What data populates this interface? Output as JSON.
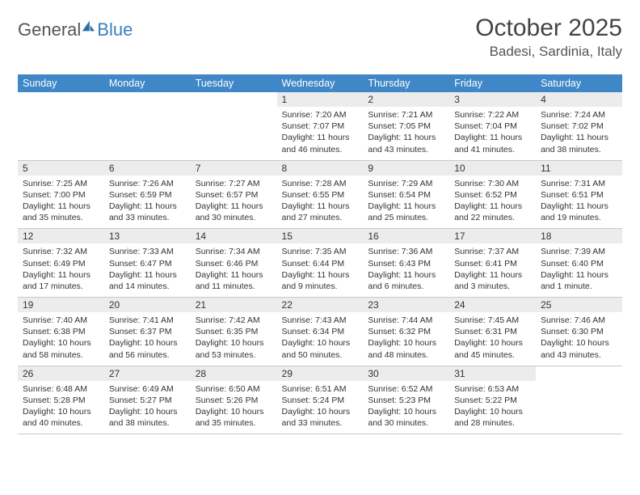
{
  "brand": {
    "part1": "General",
    "part2": "Blue"
  },
  "title": "October 2025",
  "location": "Badesi, Sardinia, Italy",
  "colors": {
    "header_bg": "#3f87c6",
    "header_fg": "#ffffff",
    "daynum_bg": "#ececec",
    "border": "#c8c8c8",
    "logo_gray": "#555555",
    "logo_blue": "#3a7fbf",
    "text": "#333333",
    "page_bg": "#ffffff"
  },
  "fonts": {
    "title_size_pt": 22,
    "location_size_pt": 13,
    "weekday_size_pt": 9,
    "daynum_size_pt": 9,
    "body_size_pt": 8
  },
  "weekdays": [
    "Sunday",
    "Monday",
    "Tuesday",
    "Wednesday",
    "Thursday",
    "Friday",
    "Saturday"
  ],
  "weeks": [
    [
      null,
      null,
      null,
      {
        "n": "1",
        "sunrise": "7:20 AM",
        "sunset": "7:07 PM",
        "daylight": "11 hours and 46 minutes."
      },
      {
        "n": "2",
        "sunrise": "7:21 AM",
        "sunset": "7:05 PM",
        "daylight": "11 hours and 43 minutes."
      },
      {
        "n": "3",
        "sunrise": "7:22 AM",
        "sunset": "7:04 PM",
        "daylight": "11 hours and 41 minutes."
      },
      {
        "n": "4",
        "sunrise": "7:24 AM",
        "sunset": "7:02 PM",
        "daylight": "11 hours and 38 minutes."
      }
    ],
    [
      {
        "n": "5",
        "sunrise": "7:25 AM",
        "sunset": "7:00 PM",
        "daylight": "11 hours and 35 minutes."
      },
      {
        "n": "6",
        "sunrise": "7:26 AM",
        "sunset": "6:59 PM",
        "daylight": "11 hours and 33 minutes."
      },
      {
        "n": "7",
        "sunrise": "7:27 AM",
        "sunset": "6:57 PM",
        "daylight": "11 hours and 30 minutes."
      },
      {
        "n": "8",
        "sunrise": "7:28 AM",
        "sunset": "6:55 PM",
        "daylight": "11 hours and 27 minutes."
      },
      {
        "n": "9",
        "sunrise": "7:29 AM",
        "sunset": "6:54 PM",
        "daylight": "11 hours and 25 minutes."
      },
      {
        "n": "10",
        "sunrise": "7:30 AM",
        "sunset": "6:52 PM",
        "daylight": "11 hours and 22 minutes."
      },
      {
        "n": "11",
        "sunrise": "7:31 AM",
        "sunset": "6:51 PM",
        "daylight": "11 hours and 19 minutes."
      }
    ],
    [
      {
        "n": "12",
        "sunrise": "7:32 AM",
        "sunset": "6:49 PM",
        "daylight": "11 hours and 17 minutes."
      },
      {
        "n": "13",
        "sunrise": "7:33 AM",
        "sunset": "6:47 PM",
        "daylight": "11 hours and 14 minutes."
      },
      {
        "n": "14",
        "sunrise": "7:34 AM",
        "sunset": "6:46 PM",
        "daylight": "11 hours and 11 minutes."
      },
      {
        "n": "15",
        "sunrise": "7:35 AM",
        "sunset": "6:44 PM",
        "daylight": "11 hours and 9 minutes."
      },
      {
        "n": "16",
        "sunrise": "7:36 AM",
        "sunset": "6:43 PM",
        "daylight": "11 hours and 6 minutes."
      },
      {
        "n": "17",
        "sunrise": "7:37 AM",
        "sunset": "6:41 PM",
        "daylight": "11 hours and 3 minutes."
      },
      {
        "n": "18",
        "sunrise": "7:39 AM",
        "sunset": "6:40 PM",
        "daylight": "11 hours and 1 minute."
      }
    ],
    [
      {
        "n": "19",
        "sunrise": "7:40 AM",
        "sunset": "6:38 PM",
        "daylight": "10 hours and 58 minutes."
      },
      {
        "n": "20",
        "sunrise": "7:41 AM",
        "sunset": "6:37 PM",
        "daylight": "10 hours and 56 minutes."
      },
      {
        "n": "21",
        "sunrise": "7:42 AM",
        "sunset": "6:35 PM",
        "daylight": "10 hours and 53 minutes."
      },
      {
        "n": "22",
        "sunrise": "7:43 AM",
        "sunset": "6:34 PM",
        "daylight": "10 hours and 50 minutes."
      },
      {
        "n": "23",
        "sunrise": "7:44 AM",
        "sunset": "6:32 PM",
        "daylight": "10 hours and 48 minutes."
      },
      {
        "n": "24",
        "sunrise": "7:45 AM",
        "sunset": "6:31 PM",
        "daylight": "10 hours and 45 minutes."
      },
      {
        "n": "25",
        "sunrise": "7:46 AM",
        "sunset": "6:30 PM",
        "daylight": "10 hours and 43 minutes."
      }
    ],
    [
      {
        "n": "26",
        "sunrise": "6:48 AM",
        "sunset": "5:28 PM",
        "daylight": "10 hours and 40 minutes."
      },
      {
        "n": "27",
        "sunrise": "6:49 AM",
        "sunset": "5:27 PM",
        "daylight": "10 hours and 38 minutes."
      },
      {
        "n": "28",
        "sunrise": "6:50 AM",
        "sunset": "5:26 PM",
        "daylight": "10 hours and 35 minutes."
      },
      {
        "n": "29",
        "sunrise": "6:51 AM",
        "sunset": "5:24 PM",
        "daylight": "10 hours and 33 minutes."
      },
      {
        "n": "30",
        "sunrise": "6:52 AM",
        "sunset": "5:23 PM",
        "daylight": "10 hours and 30 minutes."
      },
      {
        "n": "31",
        "sunrise": "6:53 AM",
        "sunset": "5:22 PM",
        "daylight": "10 hours and 28 minutes."
      },
      null
    ]
  ],
  "labels": {
    "sunrise": "Sunrise:",
    "sunset": "Sunset:",
    "daylight": "Daylight:"
  }
}
